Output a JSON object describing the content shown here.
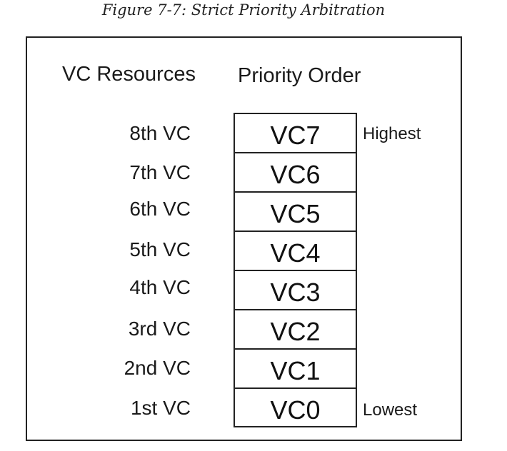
{
  "caption": "Figure 7-7: Strict Priority Arbitration",
  "headers": {
    "resources": "VC Resources",
    "priority": "Priority Order"
  },
  "resources": [
    "8th VC",
    "7th VC",
    "6th VC",
    "5th VC",
    "4th VC",
    "3rd VC",
    "2nd VC",
    "1st VC"
  ],
  "priority_order": [
    "VC7",
    "VC6",
    "VC5",
    "VC4",
    "VC3",
    "VC2",
    "VC1",
    "VC0"
  ],
  "notes": {
    "highest": "Highest",
    "lowest": "Lowest"
  }
}
